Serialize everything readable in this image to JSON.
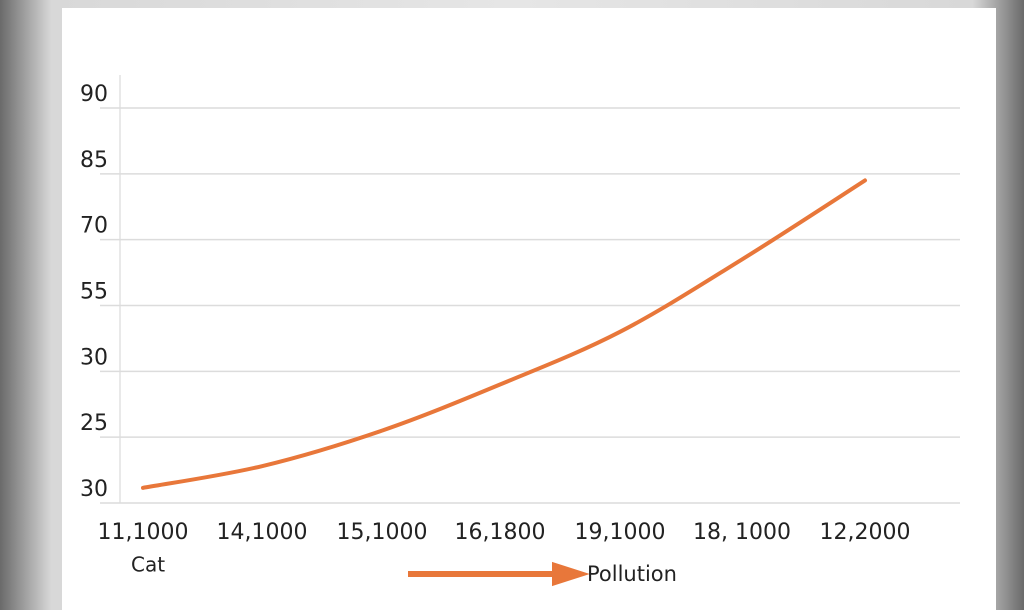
{
  "chart_data": {
    "type": "line",
    "categories": [
      "11,1000",
      "14,1000",
      "15,1000",
      "16,1800",
      "19,1000",
      "18, 1000",
      "12,2000"
    ],
    "series": [
      {
        "color": "#e8773a",
        "values": [
          0.23,
          0.56,
          1.1,
          1.8,
          2.6,
          3.7,
          4.9
        ]
      }
    ],
    "ylim": [
      0,
      6
    ],
    "yticks": [
      {
        "value": 0,
        "label": "30"
      },
      {
        "value": 1,
        "label": "25"
      },
      {
        "value": 2,
        "label": "30"
      },
      {
        "value": 3,
        "label": "55"
      },
      {
        "value": 4,
        "label": "70"
      },
      {
        "value": 5,
        "label": "85"
      },
      {
        "value": 6,
        "label": "90"
      }
    ],
    "x_category_label": "Cat",
    "xlabel": "Pollution",
    "grid": true
  }
}
